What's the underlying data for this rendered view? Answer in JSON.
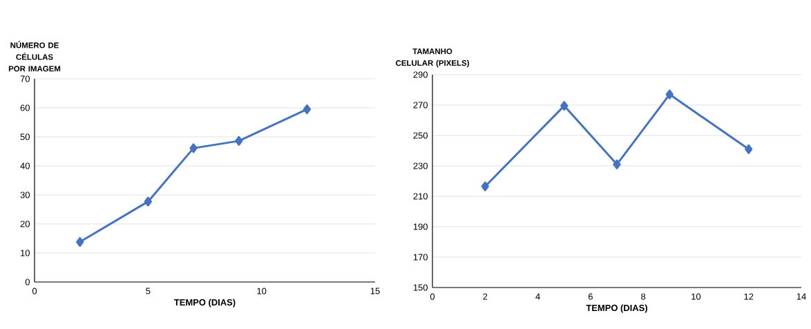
{
  "chart_data": [
    {
      "type": "line",
      "ylabel": "NÚMERO DE CÉLULAS POR IMAGEM",
      "xlabel": "TEMPO (DIAS)",
      "x": [
        2,
        5,
        7,
        9,
        12
      ],
      "values": [
        13.8,
        27.7,
        46.1,
        48.6,
        59.5
      ],
      "color": "#4472c4",
      "xlim": [
        0,
        15
      ],
      "ylim": [
        0,
        70
      ],
      "xticks": [
        0,
        5,
        10,
        15
      ],
      "yticks": [
        0,
        10,
        20,
        30,
        40,
        50,
        60,
        70
      ],
      "grid": "y",
      "marker": "diamond",
      "line_style": "solid"
    },
    {
      "type": "line",
      "ylabel": "TAMANHO CELULAR (PIXELS)",
      "xlabel": "TEMPO (DIAS)",
      "x": [
        2,
        5,
        7,
        9,
        12
      ],
      "values": [
        216.5,
        269.5,
        231,
        277,
        241
      ],
      "color": "#4472c4",
      "xlim": [
        0,
        14
      ],
      "ylim": [
        150,
        290
      ],
      "xticks": [
        0,
        2,
        4,
        6,
        8,
        10,
        12,
        14
      ],
      "yticks": [
        150,
        170,
        190,
        210,
        230,
        250,
        270,
        290
      ],
      "grid": "y",
      "marker": "diamond",
      "line_style": "solid"
    }
  ]
}
